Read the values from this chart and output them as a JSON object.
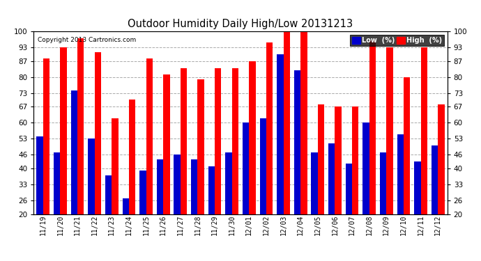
{
  "title": "Outdoor Humidity Daily High/Low 20131213",
  "copyright": "Copyright 2013 Cartronics.com",
  "labels": [
    "11/19",
    "11/20",
    "11/21",
    "11/22",
    "11/23",
    "11/24",
    "11/25",
    "11/26",
    "11/27",
    "11/28",
    "11/29",
    "11/30",
    "12/01",
    "12/02",
    "12/03",
    "12/04",
    "12/05",
    "12/06",
    "12/07",
    "12/08",
    "12/09",
    "12/10",
    "12/11",
    "12/12"
  ],
  "high": [
    88,
    93,
    97,
    91,
    62,
    70,
    88,
    81,
    84,
    79,
    84,
    84,
    87,
    95,
    100,
    100,
    68,
    67,
    67,
    96,
    93,
    80,
    93,
    68
  ],
  "low": [
    54,
    47,
    74,
    53,
    37,
    27,
    39,
    44,
    46,
    44,
    41,
    47,
    60,
    62,
    90,
    83,
    47,
    51,
    42,
    60,
    47,
    55,
    43,
    50
  ],
  "high_color": "#ff0000",
  "low_color": "#0000cc",
  "ylim": [
    20,
    100
  ],
  "ymin": 20,
  "yticks": [
    20,
    26,
    33,
    40,
    46,
    53,
    60,
    67,
    73,
    80,
    87,
    93,
    100
  ],
  "background_color": "#ffffff",
  "plot_bg_color": "#ffffff",
  "grid_color": "#aaaaaa",
  "bar_width": 0.38,
  "legend_low_label": "Low  (%)",
  "legend_high_label": "High  (%)"
}
